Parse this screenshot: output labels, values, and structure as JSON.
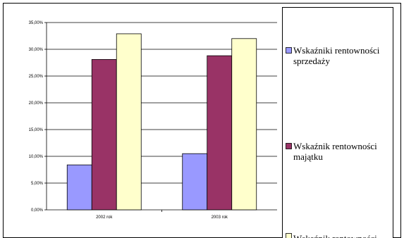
{
  "chart_data": {
    "type": "bar",
    "categories": [
      "2002 rok",
      "2003 rok"
    ],
    "series": [
      {
        "name": "Wskaźniki rentowności sprzedaży",
        "values": [
          8.4,
          10.5
        ],
        "color": "#9999ff"
      },
      {
        "name": "Wskaźnik rentowności majątku",
        "values": [
          28.1,
          28.8
        ],
        "color": "#993366"
      },
      {
        "name": "Wskaźnik rentowności",
        "values": [
          32.9,
          32.0
        ],
        "color": "#ffffcc"
      }
    ],
    "y_ticks": [
      "0,00%",
      "5,00%",
      "10,00%",
      "15,00%",
      "20,00%",
      "25,00%",
      "30,00%",
      "35,00%"
    ],
    "ylim": [
      0,
      35
    ],
    "grid": true,
    "legend_position": "right"
  }
}
